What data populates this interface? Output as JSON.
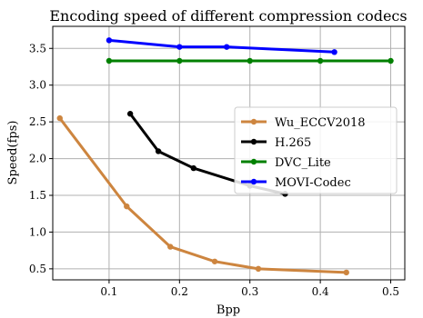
{
  "chart_data": {
    "type": "line",
    "title": "Encoding speed of different compression codecs",
    "xlabel": "Bpp",
    "ylabel": "Speed(fps)",
    "xlim": [
      0.02,
      0.52
    ],
    "ylim": [
      0.35,
      3.8
    ],
    "xticks": [
      0.1,
      0.2,
      0.3,
      0.4,
      0.5
    ],
    "xtick_labels": [
      "0.1",
      "0.2",
      "0.3",
      "0.4",
      "0.5"
    ],
    "yticks": [
      0.5,
      1.0,
      1.5,
      2.0,
      2.5,
      3.0,
      3.5
    ],
    "ytick_labels": [
      "0.5",
      "1.0",
      "1.5",
      "2.0",
      "2.5",
      "3.0",
      "3.5"
    ],
    "grid": true,
    "legend_position": "center-right",
    "series": [
      {
        "name": "Wu_ECCV2018",
        "color": "#cd853f",
        "x": [
          0.03,
          0.125,
          0.187,
          0.25,
          0.312,
          0.437
        ],
        "y": [
          2.55,
          1.35,
          0.8,
          0.6,
          0.5,
          0.45
        ]
      },
      {
        "name": "H.265",
        "color": "#000000",
        "x": [
          0.13,
          0.17,
          0.22,
          0.3,
          0.35
        ],
        "y": [
          2.61,
          2.1,
          1.87,
          1.63,
          1.52
        ]
      },
      {
        "name": "DVC_Lite",
        "color": "#008000",
        "x": [
          0.1,
          0.2,
          0.3,
          0.4,
          0.5
        ],
        "y": [
          3.33,
          3.33,
          3.33,
          3.33,
          3.33
        ]
      },
      {
        "name": "MOVI-Codec",
        "color": "#0000ff",
        "x": [
          0.1,
          0.2,
          0.267,
          0.42
        ],
        "y": [
          3.61,
          3.52,
          3.52,
          3.45
        ]
      }
    ]
  }
}
